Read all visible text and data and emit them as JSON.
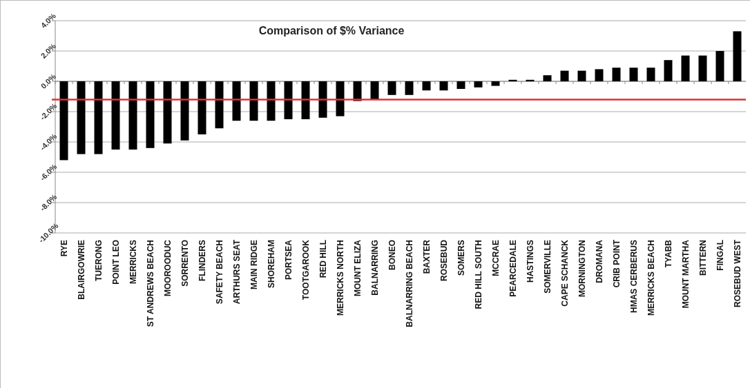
{
  "chart_data": {
    "type": "bar",
    "title": "Comparison of $% Variance",
    "categories": [
      "RYE",
      "BLAIRGOWRIE",
      "TUERONG",
      "POINT LEO",
      "MERRICKS",
      "ST ANDREWS BEACH",
      "MOOROODUC",
      "SORRENTO",
      "FLINDERS",
      "SAFETY BEACH",
      "ARTHURS SEAT",
      "MAIN RIDGE",
      "SHOREHAM",
      "PORTSEA",
      "TOOTGAROOK",
      "RED HILL",
      "MERRICKS NORTH",
      "MOUNT ELIZA",
      "BALNARRING",
      "BONEO",
      "BALNARRING BEACH",
      "BAXTER",
      "ROSEBUD",
      "SOMERS",
      "RED HILL SOUTH",
      "MCCRAE",
      "PEARCEDALE",
      "HASTINGS",
      "SOMERVILLE",
      "CAPE SCHANCK",
      "MORNINGTON",
      "DROMANA",
      "CRIB POINT",
      "HMAS CERBERUS",
      "MERRICKS BEACH",
      "TYABB",
      "MOUNT MARTHA",
      "BITTERN",
      "FINGAL",
      "ROSEBUD WEST"
    ],
    "values": [
      -5.2,
      -4.8,
      -4.8,
      -4.5,
      -4.5,
      -4.4,
      -4.1,
      -3.9,
      -3.5,
      -3.1,
      -2.6,
      -2.6,
      -2.6,
      -2.5,
      -2.5,
      -2.4,
      -2.3,
      -1.3,
      -1.2,
      -0.9,
      -0.9,
      -0.6,
      -0.6,
      -0.5,
      -0.4,
      -0.3,
      0.1,
      0.1,
      0.4,
      0.7,
      0.7,
      0.8,
      0.9,
      0.9,
      0.9,
      1.4,
      1.7,
      1.7,
      2.0,
      3.3
    ],
    "color": "#000000",
    "ylim": [
      -10,
      4
    ],
    "yticks": [
      {
        "value": 4,
        "label": "4.0%"
      },
      {
        "value": 2,
        "label": "2.0%"
      },
      {
        "value": 0,
        "label": "0.0%"
      },
      {
        "value": -2,
        "label": "-2.0%"
      },
      {
        "value": -4,
        "label": "-4.0%"
      },
      {
        "value": -6,
        "label": "-6.0%"
      },
      {
        "value": -8,
        "label": "-8.0%"
      },
      {
        "value": -10,
        "label": "-10.0%"
      }
    ],
    "grid": "y",
    "ref_lines": [
      {
        "axis": "y",
        "value": -1.2,
        "color": "#e03030"
      }
    ]
  }
}
